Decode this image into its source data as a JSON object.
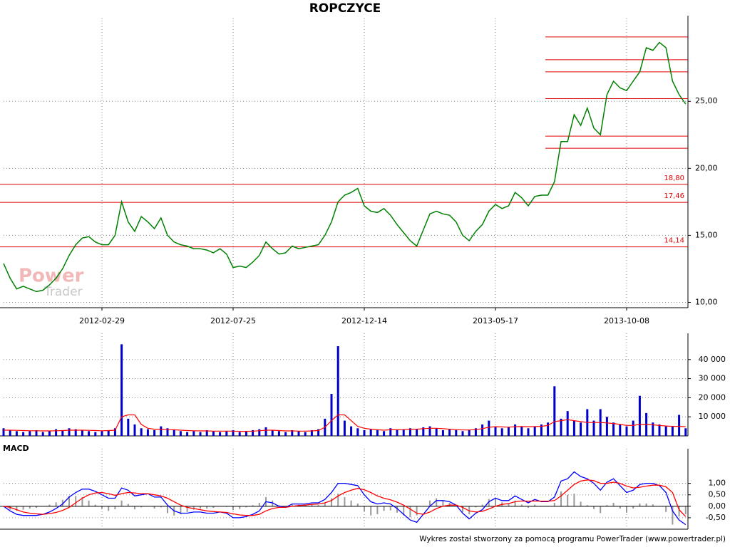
{
  "footer": "Wykres został stworzony za pomocą programu PowerTrader (www.powertrader.pl)",
  "watermark": [
    "Power",
    "Trader"
  ],
  "chart_data": [
    {
      "type": "line",
      "title": "ROPCZYCE",
      "categories": [
        null,
        null,
        null,
        null,
        null,
        null,
        null,
        null,
        null,
        null,
        null,
        null,
        null,
        null,
        null,
        "2012-02-29",
        null,
        null,
        null,
        null,
        null,
        null,
        null,
        null,
        null,
        null,
        null,
        null,
        null,
        null,
        null,
        null,
        null,
        null,
        null,
        "2012-07-25",
        null,
        null,
        null,
        null,
        null,
        null,
        null,
        null,
        null,
        null,
        null,
        null,
        null,
        null,
        null,
        null,
        null,
        null,
        null,
        "2012-12-14",
        null,
        null,
        null,
        null,
        null,
        null,
        null,
        null,
        null,
        null,
        null,
        null,
        null,
        null,
        null,
        null,
        null,
        null,
        null,
        "2013-05-17",
        null,
        null,
        null,
        null,
        null,
        null,
        null,
        null,
        null,
        null,
        null,
        null,
        null,
        null,
        null,
        null,
        null,
        null,
        null,
        "2013-10-08",
        null,
        null,
        null,
        null,
        null,
        null,
        null,
        null,
        null
      ],
      "series": [
        {
          "color": "#008000",
          "values": [
            12.9,
            11.8,
            11.0,
            11.2,
            11.0,
            10.8,
            10.9,
            11.3,
            11.8,
            12.5,
            13.5,
            14.3,
            14.8,
            14.9,
            14.5,
            14.3,
            14.3,
            15.0,
            17.5,
            16.0,
            15.3,
            16.4,
            16.0,
            15.5,
            16.3,
            15.0,
            14.5,
            14.3,
            14.2,
            14.0,
            14.0,
            13.9,
            13.7,
            14.0,
            13.6,
            12.6,
            12.7,
            12.6,
            13.0,
            13.5,
            14.5,
            14.0,
            13.6,
            13.7,
            14.2,
            14.0,
            14.1,
            14.2,
            14.3,
            15.0,
            16.0,
            17.5,
            18.0,
            18.2,
            18.5,
            17.2,
            16.8,
            16.7,
            17.0,
            16.5,
            15.8,
            15.2,
            14.6,
            14.2,
            15.4,
            16.6,
            16.8,
            16.6,
            16.5,
            16.0,
            15.0,
            14.6,
            15.3,
            15.8,
            16.8,
            17.3,
            17.0,
            17.2,
            18.2,
            17.8,
            17.2,
            17.9,
            18.0,
            18.0,
            19.0,
            22.0,
            22.0,
            24.0,
            23.2,
            24.5,
            23.0,
            22.5,
            25.5,
            26.5,
            26.0,
            25.8,
            26.5,
            27.2,
            29.0,
            28.8,
            29.4,
            29.0,
            26.5,
            25.5,
            24.8
          ]
        }
      ],
      "hlines": [
        {
          "value": 18.8,
          "label": "18,80"
        },
        {
          "value": 17.46,
          "label": "17,46"
        },
        {
          "value": 14.14,
          "label": "14,14"
        }
      ],
      "levels": [
        29.8,
        28.1,
        27.2,
        25.2,
        22.4,
        21.5
      ],
      "level_color": "#e00000",
      "ylim": [
        9.6,
        30.7
      ],
      "yticks": [
        {
          "value": 10,
          "label": "10,00"
        },
        {
          "value": 15,
          "label": "15,00"
        },
        {
          "value": 20,
          "label": "20,00"
        },
        {
          "value": 25,
          "label": "25,00"
        }
      ],
      "grid": true
    },
    {
      "type": "bar",
      "series": [
        {
          "color": "#0000cc",
          "values": [
            4000,
            3000,
            2500,
            2000,
            2500,
            3000,
            2000,
            2500,
            3500,
            3000,
            4000,
            3500,
            3000,
            2500,
            2000,
            2500,
            3000,
            4000,
            48000,
            9000,
            6000,
            4000,
            3500,
            3000,
            5000,
            4000,
            3000,
            2500,
            2000,
            2500,
            2000,
            3000,
            2500,
            2000,
            2500,
            3000,
            2000,
            2500,
            3000,
            3500,
            4500,
            3000,
            2500,
            2000,
            3000,
            2500,
            2000,
            3000,
            3500,
            9000,
            22000,
            47000,
            8000,
            5000,
            4000,
            3000,
            3500,
            3000,
            2500,
            4000,
            3000,
            3500,
            4000,
            3500,
            4500,
            5000,
            4000,
            3000,
            3500,
            3000,
            2500,
            3000,
            4000,
            6000,
            8000,
            5000,
            4000,
            4500,
            6000,
            5000,
            4000,
            5000,
            6000,
            7000,
            26000,
            9000,
            13000,
            8000,
            7000,
            14000,
            8000,
            14000,
            10000,
            7000,
            6000,
            5000,
            8000,
            21000,
            12000,
            7000,
            6000,
            5000,
            5000,
            11000,
            4000
          ]
        },
        {
          "color": "#ff0000",
          "values": [
            3000,
            3000,
            2900,
            2800,
            2700,
            2700,
            2600,
            2600,
            2700,
            2800,
            3000,
            3000,
            3000,
            2900,
            2800,
            2700,
            2800,
            3000,
            10000,
            11000,
            11000,
            6000,
            4000,
            3500,
            3500,
            3300,
            3200,
            3000,
            2800,
            2700,
            2600,
            2600,
            2500,
            2500,
            2500,
            2500,
            2400,
            2400,
            2500,
            2700,
            3000,
            3000,
            2800,
            2600,
            2600,
            2500,
            2500,
            2600,
            2800,
            4500,
            8000,
            11000,
            11000,
            8000,
            5000,
            4000,
            3500,
            3200,
            3000,
            3200,
            3200,
            3300,
            3500,
            3500,
            3800,
            4000,
            4000,
            3800,
            3500,
            3300,
            3100,
            3100,
            3300,
            3800,
            4500,
            4800,
            4700,
            4600,
            4800,
            4900,
            4800,
            4900,
            5000,
            5500,
            7500,
            8000,
            8500,
            8000,
            7500,
            7000,
            7000,
            7000,
            6800,
            6500,
            6000,
            5500,
            5500,
            6000,
            6000,
            5800,
            5500,
            5200,
            5000,
            5000,
            4800
          ]
        }
      ],
      "ylim": [
        0,
        50000
      ],
      "yticks": [
        {
          "value": 10000,
          "label": "10 000"
        },
        {
          "value": 20000,
          "label": "20 000"
        },
        {
          "value": 30000,
          "label": "30 000"
        },
        {
          "value": 40000,
          "label": "40 000"
        }
      ],
      "grid": true
    },
    {
      "type": "line",
      "title": "MACD",
      "series": [
        {
          "color": "#0000ff",
          "values": [
            0.0,
            -0.2,
            -0.35,
            -0.4,
            -0.4,
            -0.4,
            -0.35,
            -0.25,
            -0.1,
            0.1,
            0.4,
            0.6,
            0.75,
            0.75,
            0.65,
            0.5,
            0.35,
            0.35,
            0.8,
            0.7,
            0.45,
            0.5,
            0.55,
            0.4,
            0.4,
            0.05,
            -0.2,
            -0.3,
            -0.3,
            -0.25,
            -0.25,
            -0.3,
            -0.3,
            -0.25,
            -0.3,
            -0.5,
            -0.5,
            -0.45,
            -0.35,
            -0.2,
            0.2,
            0.15,
            0.0,
            -0.05,
            0.1,
            0.1,
            0.1,
            0.15,
            0.15,
            0.3,
            0.6,
            1.0,
            1.0,
            0.95,
            0.9,
            0.5,
            0.2,
            0.1,
            0.15,
            0.1,
            -0.1,
            -0.35,
            -0.6,
            -0.7,
            -0.35,
            0.0,
            0.25,
            0.25,
            0.2,
            0.05,
            -0.3,
            -0.55,
            -0.3,
            -0.15,
            0.2,
            0.35,
            0.25,
            0.25,
            0.45,
            0.3,
            0.15,
            0.3,
            0.2,
            0.2,
            0.4,
            1.1,
            1.2,
            1.5,
            1.3,
            1.2,
            1.0,
            0.7,
            1.05,
            1.2,
            0.9,
            0.6,
            0.7,
            0.95,
            1.0,
            1.0,
            0.9,
            0.6,
            -0.2,
            -0.6,
            -0.8
          ]
        },
        {
          "color": "#ff0000",
          "values": [
            0.0,
            -0.05,
            -0.15,
            -0.25,
            -0.3,
            -0.33,
            -0.35,
            -0.32,
            -0.27,
            -0.18,
            -0.05,
            0.15,
            0.35,
            0.5,
            0.58,
            0.6,
            0.55,
            0.48,
            0.55,
            0.6,
            0.58,
            0.55,
            0.55,
            0.5,
            0.45,
            0.35,
            0.2,
            0.05,
            -0.05,
            -0.1,
            -0.15,
            -0.2,
            -0.23,
            -0.25,
            -0.27,
            -0.33,
            -0.38,
            -0.4,
            -0.4,
            -0.35,
            -0.2,
            -0.1,
            -0.05,
            -0.05,
            0.0,
            0.03,
            0.05,
            0.08,
            0.1,
            0.15,
            0.25,
            0.45,
            0.6,
            0.7,
            0.78,
            0.72,
            0.6,
            0.45,
            0.35,
            0.28,
            0.18,
            0.05,
            -0.12,
            -0.3,
            -0.35,
            -0.25,
            -0.1,
            0.0,
            0.05,
            0.05,
            -0.05,
            -0.2,
            -0.25,
            -0.22,
            -0.12,
            0.0,
            0.08,
            0.12,
            0.2,
            0.23,
            0.22,
            0.23,
            0.22,
            0.22,
            0.25,
            0.45,
            0.7,
            0.95,
            1.1,
            1.15,
            1.12,
            1.0,
            1.0,
            1.05,
            1.0,
            0.88,
            0.8,
            0.83,
            0.88,
            0.92,
            0.92,
            0.85,
            0.6,
            -0.15,
            -0.45
          ]
        }
      ],
      "histogram": {
        "color": "#9a9a9a",
        "values": [
          0,
          -0.15,
          -0.2,
          -0.15,
          -0.1,
          -0.07,
          0,
          0.07,
          0.17,
          0.28,
          0.45,
          0.45,
          0.4,
          0.25,
          0.07,
          -0.1,
          -0.2,
          -0.13,
          0.25,
          0.1,
          -0.13,
          -0.05,
          0,
          -0.1,
          -0.05,
          -0.3,
          -0.4,
          -0.35,
          -0.25,
          -0.15,
          -0.1,
          -0.1,
          -0.07,
          0,
          -0.03,
          -0.17,
          -0.12,
          -0.05,
          0.05,
          0.15,
          0.4,
          0.25,
          0.05,
          0,
          0.1,
          0.07,
          0.05,
          0.07,
          0.05,
          0.15,
          0.35,
          0.55,
          0.4,
          0.25,
          0.12,
          -0.22,
          -0.4,
          -0.35,
          -0.2,
          -0.18,
          -0.28,
          -0.4,
          -0.48,
          -0.4,
          0,
          0.25,
          0.35,
          0.25,
          0.15,
          0,
          -0.25,
          -0.35,
          -0.05,
          0.07,
          0.32,
          0.35,
          0.17,
          0.13,
          0.25,
          0.07,
          -0.07,
          0.07,
          -0.02,
          -0.02,
          0.15,
          0.65,
          0.5,
          0.55,
          0.2,
          0.05,
          -0.12,
          -0.3,
          0.05,
          0.15,
          -0.1,
          -0.28,
          -0.1,
          0.12,
          0.12,
          0.08,
          -0.02,
          -0.25,
          -0.8,
          -0.45,
          -0.35
        ]
      },
      "ylim": [
        -1.0,
        2.2
      ],
      "yticks": [
        {
          "value": -0.5,
          "label": "-0,50"
        },
        {
          "value": 0,
          "label": "0,00"
        },
        {
          "value": 0.5,
          "label": "0,50"
        },
        {
          "value": 1,
          "label": "1,00"
        }
      ],
      "grid": true
    }
  ]
}
